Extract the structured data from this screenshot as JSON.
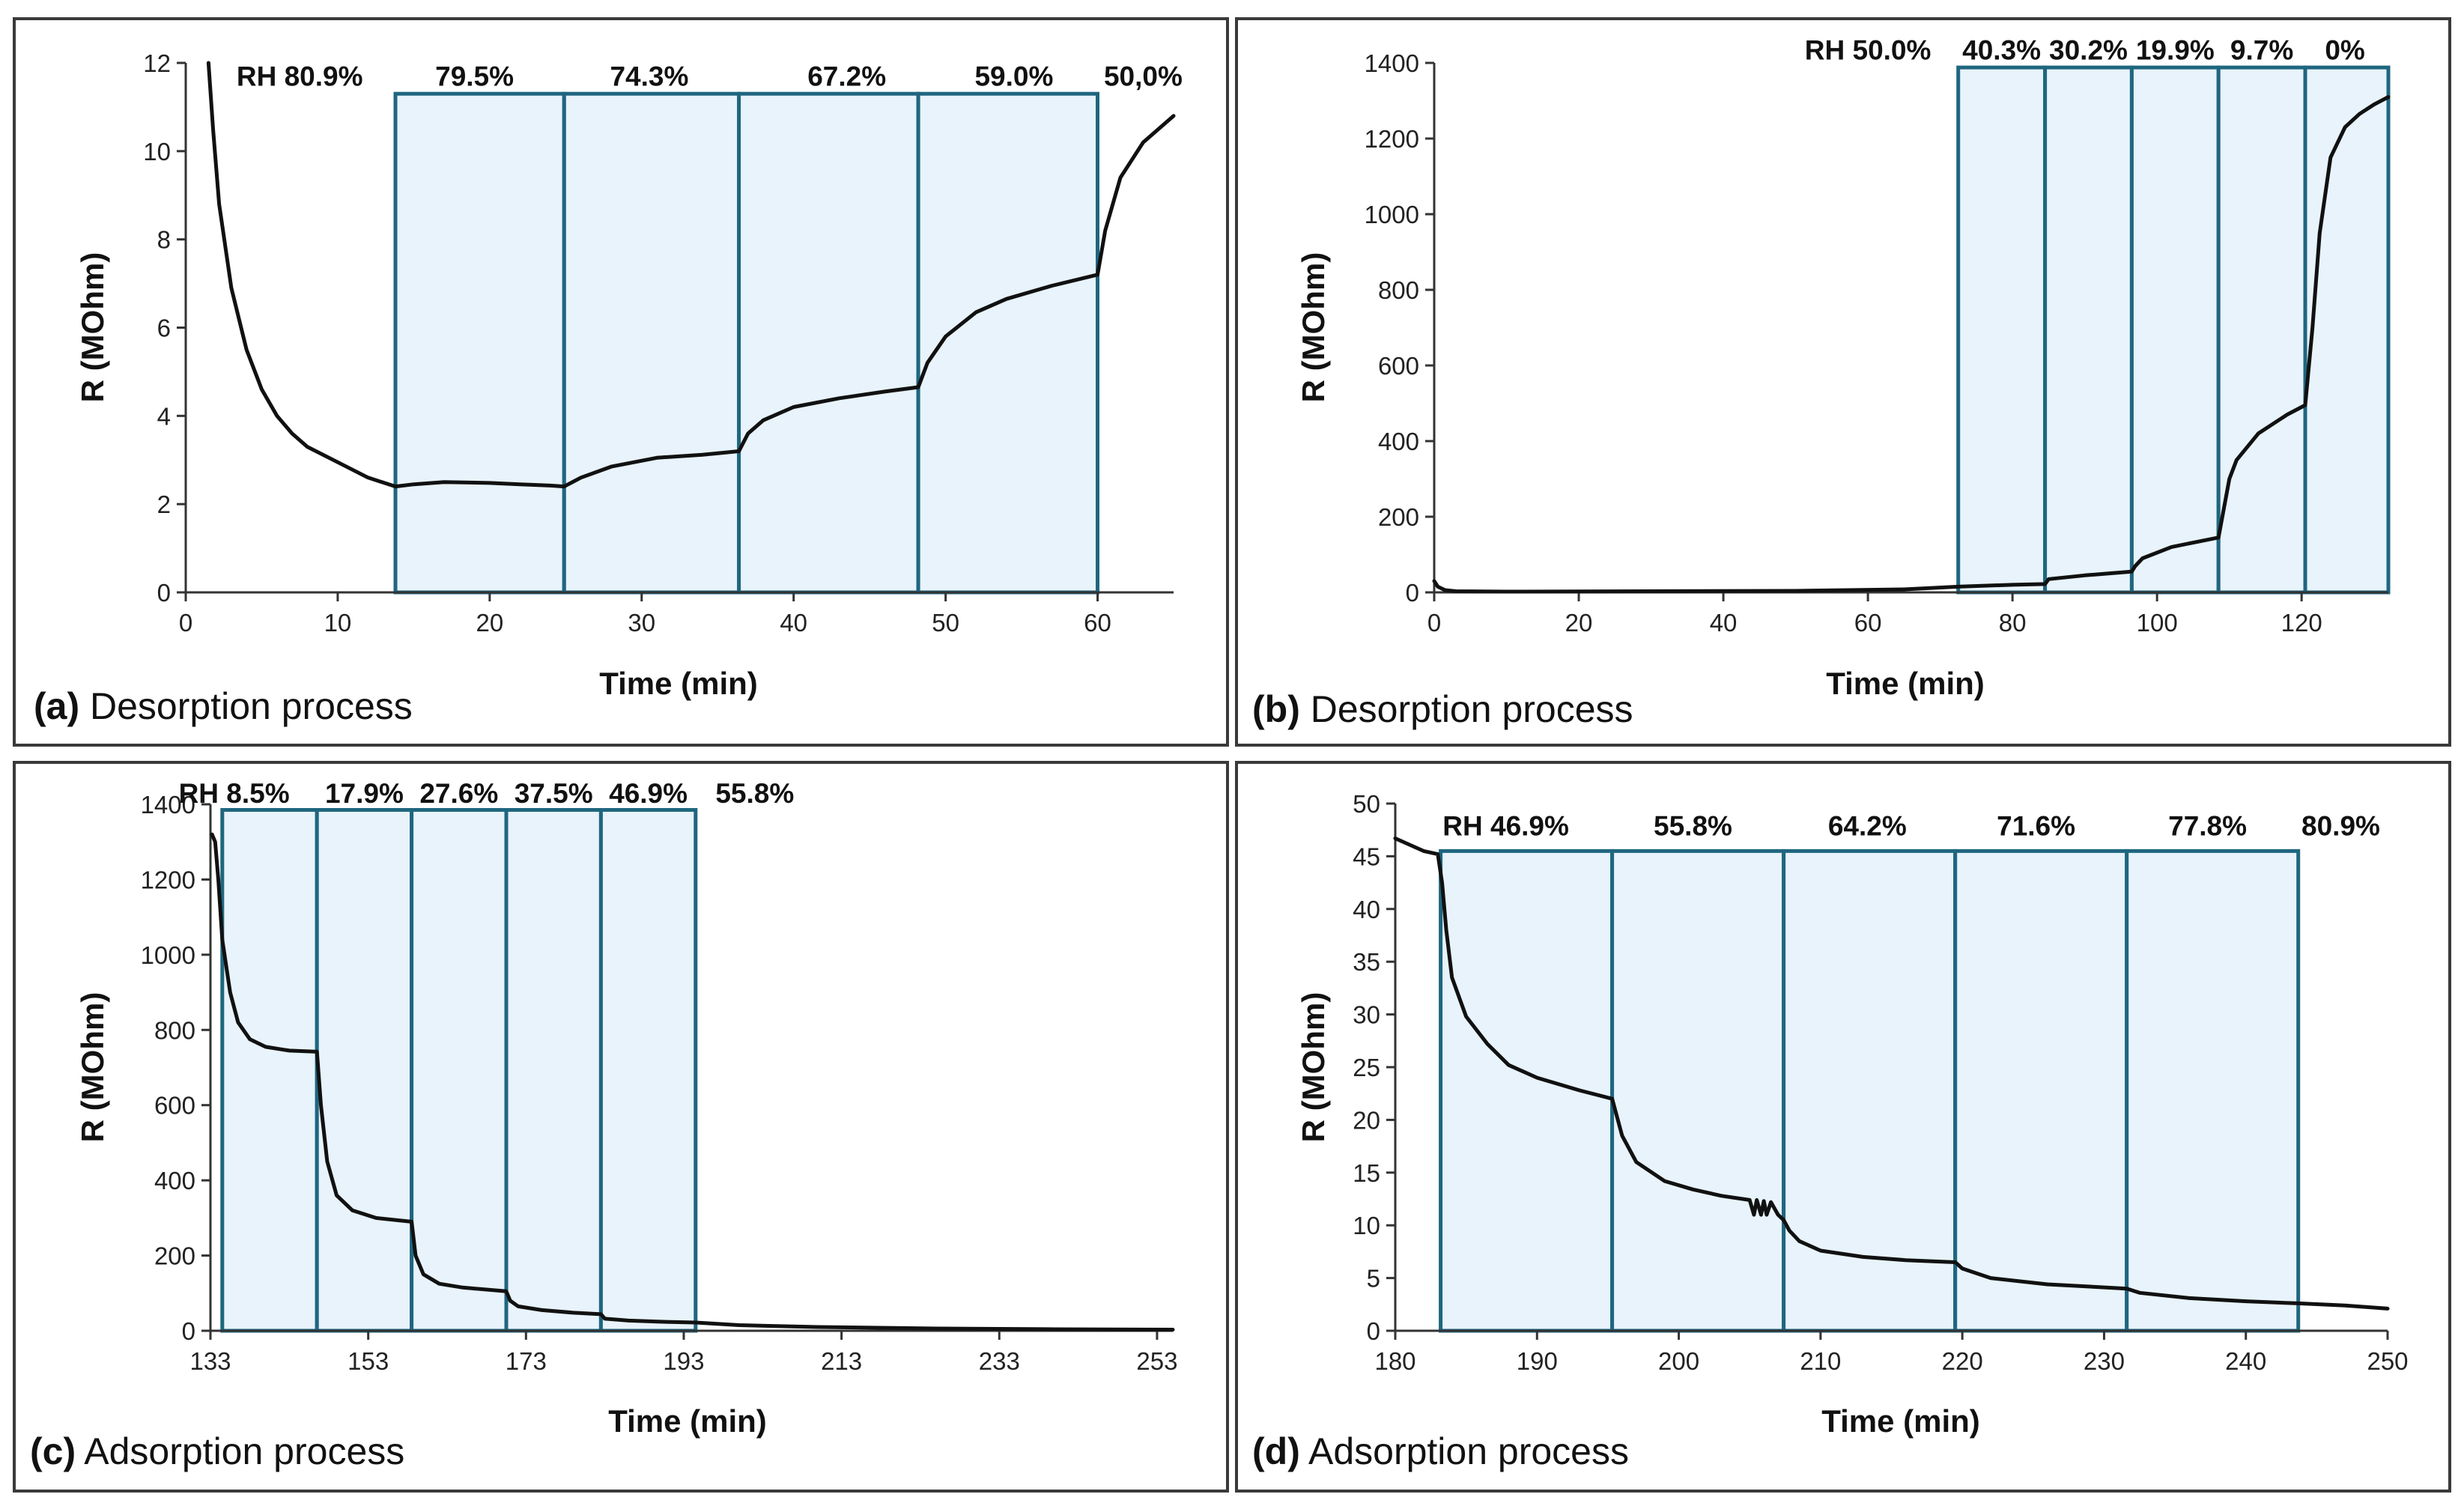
{
  "chart_data": [
    {
      "type": "line",
      "panel_tag": "(a)",
      "panel_title": "Desorption process",
      "xlabel": "Time (min)",
      "ylabel": "R (MOhm)",
      "xlim": [
        0,
        65
      ],
      "ylim": [
        0,
        12
      ],
      "xticks": [
        0,
        10,
        20,
        30,
        40,
        50,
        60
      ],
      "yticks": [
        0,
        2,
        4,
        6,
        8,
        10,
        12
      ],
      "box_top": 11.3,
      "box_edges": [
        13.8,
        24.9,
        36.4,
        48.2,
        60.0
      ],
      "rh_labels": [
        {
          "text": "RH 80.9%",
          "x": 7.5,
          "y": 11.7
        },
        {
          "text": "79.5%",
          "x": 19.0,
          "y": 11.7
        },
        {
          "text": "74.3%",
          "x": 30.5,
          "y": 11.7
        },
        {
          "text": "67.2%",
          "x": 43.5,
          "y": 11.7
        },
        {
          "text": "59.0%",
          "x": 54.5,
          "y": 11.7
        },
        {
          "text": "50,0%",
          "x": 63.0,
          "y": 11.7
        }
      ],
      "series": [
        {
          "name": "R",
          "x": [
            1.5,
            1.8,
            2.2,
            3.0,
            4.0,
            5.0,
            6.0,
            7.0,
            8.0,
            10.0,
            12.0,
            13.8,
            15.0,
            17.0,
            20.0,
            22.0,
            24.0,
            24.9,
            26.0,
            28.0,
            31.0,
            34.0,
            36.4,
            37.0,
            38.0,
            40.0,
            43.0,
            46.0,
            48.2,
            48.8,
            50.0,
            52.0,
            54.0,
            57.0,
            60.0,
            60.5,
            61.5,
            63.0,
            65.0
          ],
          "y": [
            12.0,
            10.5,
            8.8,
            6.9,
            5.5,
            4.6,
            4.0,
            3.6,
            3.3,
            2.95,
            2.6,
            2.4,
            2.45,
            2.5,
            2.48,
            2.45,
            2.42,
            2.4,
            2.6,
            2.85,
            3.05,
            3.12,
            3.2,
            3.6,
            3.9,
            4.2,
            4.4,
            4.55,
            4.65,
            5.2,
            5.8,
            6.35,
            6.65,
            6.95,
            7.2,
            8.2,
            9.4,
            10.2,
            10.8
          ]
        }
      ]
    },
    {
      "type": "line",
      "panel_tag": "(b)",
      "panel_title": "Desorption process",
      "xlabel": "Time (min)",
      "ylabel": "R (MOhm)",
      "xlim": [
        0,
        132
      ],
      "ylim": [
        0,
        1400
      ],
      "xticks": [
        0,
        20,
        40,
        60,
        80,
        100,
        120
      ],
      "yticks": [
        0,
        200,
        400,
        600,
        800,
        1000,
        1200,
        1400
      ],
      "box_top": 1388,
      "box_edges": [
        72.5,
        84.5,
        96.5,
        108.5,
        120.5,
        132.0
      ],
      "rh_labels": [
        {
          "text": "RH 50.0%",
          "x": 60.0,
          "y": 1435
        },
        {
          "text": "40.3%",
          "x": 78.5,
          "y": 1435
        },
        {
          "text": "30.2%",
          "x": 90.5,
          "y": 1435
        },
        {
          "text": "19.9%",
          "x": 102.5,
          "y": 1435
        },
        {
          "text": "9.7%",
          "x": 114.5,
          "y": 1435
        },
        {
          "text": "0%",
          "x": 126.0,
          "y": 1435
        }
      ],
      "series": [
        {
          "name": "R",
          "x": [
            0,
            0.5,
            1.5,
            3,
            10,
            30,
            50,
            65,
            72.5,
            80,
            84.5,
            85,
            90,
            96.5,
            97,
            98,
            102,
            108.5,
            110,
            111,
            114,
            118,
            120.5,
            121.5,
            122.5,
            124,
            126,
            128,
            130,
            132
          ],
          "y": [
            30,
            15,
            6,
            3,
            2,
            3,
            4,
            8,
            15,
            20,
            22,
            35,
            45,
            55,
            70,
            90,
            120,
            145,
            300,
            350,
            420,
            470,
            495,
            700,
            950,
            1150,
            1230,
            1265,
            1290,
            1310
          ]
        }
      ]
    },
    {
      "type": "line",
      "panel_tag": "(c)",
      "panel_title": "Adsorption process",
      "xlabel": "Time (min)",
      "ylabel": "R (MOhm)",
      "xlim": [
        133,
        255
      ],
      "ylim": [
        0,
        1400
      ],
      "xticks": [
        133,
        153,
        173,
        193,
        213,
        233,
        253
      ],
      "yticks": [
        0,
        200,
        400,
        600,
        800,
        1000,
        1200,
        1400
      ],
      "box_top": 1385,
      "box_edges": [
        134.5,
        146.5,
        158.5,
        170.5,
        182.5,
        194.5
      ],
      "rh_labels": [
        {
          "text": "RH 8.5%",
          "x": 136.0,
          "y": 1430
        },
        {
          "text": "17.9%",
          "x": 152.5,
          "y": 1430
        },
        {
          "text": "27.6%",
          "x": 164.5,
          "y": 1430
        },
        {
          "text": "37.5%",
          "x": 176.5,
          "y": 1430
        },
        {
          "text": "46.9%",
          "x": 188.5,
          "y": 1430
        },
        {
          "text": "55.8%",
          "x": 202.0,
          "y": 1430
        }
      ],
      "series": [
        {
          "name": "R",
          "x": [
            133.2,
            133.6,
            134.0,
            134.5,
            135.5,
            136.5,
            138.0,
            140.0,
            143.0,
            146.5,
            147.0,
            147.8,
            149.0,
            151.0,
            154.0,
            158.5,
            159.0,
            160.0,
            162.0,
            165.0,
            170.5,
            171.0,
            172.0,
            175.0,
            179.0,
            182.5,
            183.0,
            186.0,
            190.0,
            194.5,
            200.0,
            210.0,
            225.0,
            240.0,
            255.0
          ],
          "y": [
            1320,
            1300,
            1200,
            1040,
            900,
            820,
            775,
            755,
            745,
            742,
            600,
            450,
            360,
            320,
            300,
            290,
            200,
            150,
            125,
            115,
            105,
            80,
            65,
            55,
            48,
            44,
            32,
            27,
            24,
            22,
            15,
            10,
            6,
            4,
            3
          ]
        }
      ]
    },
    {
      "type": "line",
      "panel_tag": "(d)",
      "panel_title": "Adsorption process",
      "xlabel": "Time (min)",
      "ylabel": "R (MOhm)",
      "xlim": [
        180,
        250
      ],
      "ylim": [
        0,
        50
      ],
      "xticks": [
        180,
        190,
        200,
        210,
        220,
        230,
        240,
        250
      ],
      "yticks": [
        0,
        5,
        10,
        15,
        20,
        25,
        30,
        35,
        40,
        45,
        50
      ],
      "box_top": 45.5,
      "box_edges": [
        183.2,
        195.3,
        207.4,
        219.5,
        231.6,
        243.7
      ],
      "rh_labels": [
        {
          "text": "RH 46.9%",
          "x": 187.8,
          "y": 47.9
        },
        {
          "text": "55.8%",
          "x": 201.0,
          "y": 47.9
        },
        {
          "text": "64.2%",
          "x": 213.3,
          "y": 47.9
        },
        {
          "text": "71.6%",
          "x": 225.2,
          "y": 47.9
        },
        {
          "text": "77.8%",
          "x": 237.3,
          "y": 47.9
        },
        {
          "text": "80.9%",
          "x": 246.7,
          "y": 47.9
        }
      ],
      "series": [
        {
          "name": "R",
          "x": [
            180.0,
            182.0,
            183.0,
            183.3,
            183.6,
            184.0,
            185.0,
            186.5,
            188.0,
            190.0,
            193.0,
            195.3,
            195.6,
            196.0,
            197.0,
            199.0,
            201.0,
            203.0,
            205.0,
            205.3,
            205.5,
            205.8,
            206.0,
            206.2,
            206.5,
            207.0,
            207.4,
            207.8,
            208.5,
            210.0,
            213.0,
            216.0,
            219.5,
            220.0,
            222.0,
            226.0,
            231.6,
            232.5,
            236.0,
            240.0,
            243.7,
            247.0,
            250.0
          ],
          "y": [
            46.7,
            45.5,
            45.2,
            42.5,
            38.0,
            33.5,
            29.8,
            27.2,
            25.2,
            24.0,
            22.8,
            22.0,
            20.5,
            18.5,
            16.0,
            14.2,
            13.4,
            12.8,
            12.4,
            11.0,
            12.4,
            11.0,
            12.3,
            11.0,
            12.2,
            11.0,
            10.5,
            9.5,
            8.5,
            7.6,
            7.0,
            6.7,
            6.5,
            5.9,
            5.0,
            4.4,
            4.0,
            3.6,
            3.1,
            2.8,
            2.6,
            2.4,
            2.1
          ]
        }
      ]
    }
  ]
}
